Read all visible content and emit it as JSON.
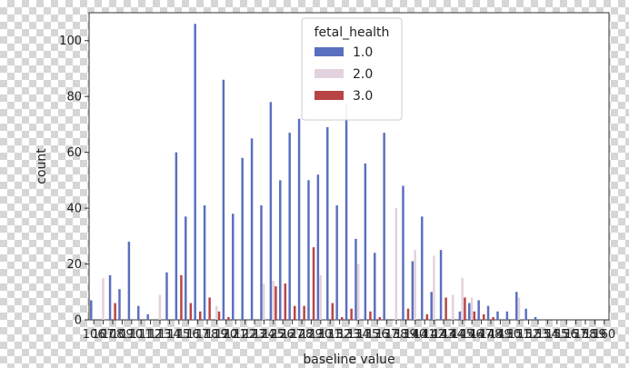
{
  "chart_data": {
    "type": "bar",
    "xlabel": "baseline value",
    "ylabel": "count",
    "ylim": [
      0,
      110
    ],
    "yticks": [
      0,
      20,
      40,
      60,
      80,
      100
    ],
    "grid": false,
    "legend": {
      "title": "fetal_health",
      "placement": "top-center"
    },
    "categories": [
      "106",
      "107",
      "108",
      "109",
      "110",
      "111",
      "112",
      "113",
      "114",
      "115",
      "116",
      "117",
      "118",
      "119",
      "120",
      "121",
      "122",
      "123",
      "124",
      "125",
      "126",
      "127",
      "128",
      "129",
      "130",
      "131",
      "132",
      "133",
      "134",
      "135",
      "136",
      "137",
      "138",
      "139",
      "140",
      "141",
      "142",
      "143",
      "144",
      "145",
      "146",
      "147",
      "148",
      "149",
      "150",
      "151",
      "152",
      "153",
      "154",
      "155",
      "156",
      "157",
      "158",
      "159",
      "160"
    ],
    "series": [
      {
        "name": "1.0",
        "color": "#5a6fbf",
        "values": [
          7,
          0,
          16,
          11,
          28,
          5,
          2,
          0,
          17,
          60,
          37,
          106,
          41,
          0,
          86,
          38,
          58,
          65,
          41,
          78,
          50,
          67,
          72,
          50,
          52,
          69,
          41,
          77,
          29,
          56,
          24,
          67,
          0,
          48,
          21,
          37,
          10,
          25,
          0,
          3,
          6,
          7,
          5,
          3,
          3,
          10,
          4,
          1,
          0,
          0,
          0,
          0,
          0,
          0,
          0
        ]
      },
      {
        "name": "2.0",
        "color": "#e2d2de",
        "values": [
          0,
          15,
          0,
          0,
          0,
          0,
          0,
          9,
          0,
          0,
          0,
          0,
          0,
          5,
          0,
          0,
          0,
          0,
          13,
          14,
          0,
          0,
          0,
          0,
          16,
          0,
          0,
          0,
          20,
          0,
          0,
          0,
          40,
          0,
          25,
          0,
          23,
          0,
          9,
          15,
          8,
          0,
          0,
          0,
          0,
          8,
          0,
          0,
          0,
          0,
          0,
          0,
          0,
          0,
          0
        ]
      },
      {
        "name": "3.0",
        "color": "#b84444",
        "values": [
          0,
          0,
          6,
          0,
          0,
          0,
          0,
          0,
          0,
          16,
          6,
          3,
          8,
          3,
          1,
          0,
          0,
          0,
          0,
          12,
          13,
          5,
          5,
          26,
          0,
          6,
          1,
          4,
          0,
          3,
          1,
          0,
          0,
          4,
          0,
          2,
          0,
          8,
          0,
          8,
          3,
          2,
          1,
          0,
          0,
          0,
          0,
          0,
          0,
          0,
          0,
          0,
          0,
          0,
          0
        ]
      }
    ]
  }
}
